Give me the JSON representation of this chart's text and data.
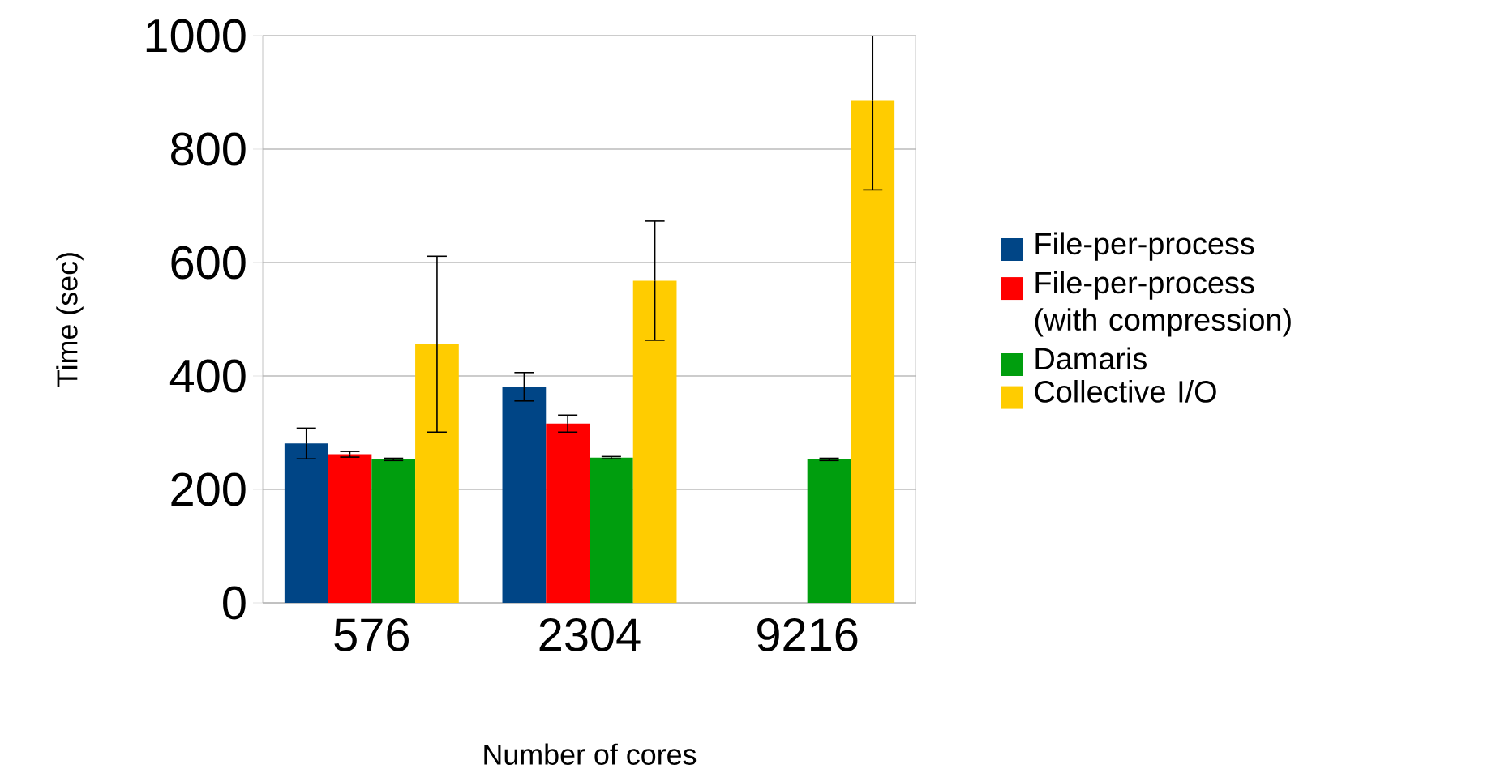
{
  "chart_data": {
    "type": "bar",
    "xlabel": "Number of cores",
    "ylabel": "Time (sec)",
    "categories": [
      "576",
      "2304",
      "9216"
    ],
    "series": [
      {
        "name": "File-per-process",
        "color": "#004586",
        "values": [
          281,
          381,
          null
        ],
        "errors": [
          27,
          25,
          null
        ]
      },
      {
        "name": "File-per-process (with compression)",
        "color": "#ff0000",
        "values": [
          262,
          316,
          null
        ],
        "errors": [
          5,
          15,
          null
        ]
      },
      {
        "name": "Damaris",
        "color": "#009e0e",
        "values": [
          253,
          256,
          253
        ],
        "errors": [
          2,
          2,
          2
        ]
      },
      {
        "name": "Collective I/O",
        "color": "#ffcc00",
        "values": [
          456,
          568,
          885
        ],
        "errors": [
          155,
          105,
          [
            728,
            1000
          ]
        ]
      }
    ],
    "ylim": [
      0,
      1000
    ],
    "yticks": [
      0,
      200,
      400,
      600,
      800,
      1000
    ],
    "grid": "y",
    "legend": "right"
  }
}
